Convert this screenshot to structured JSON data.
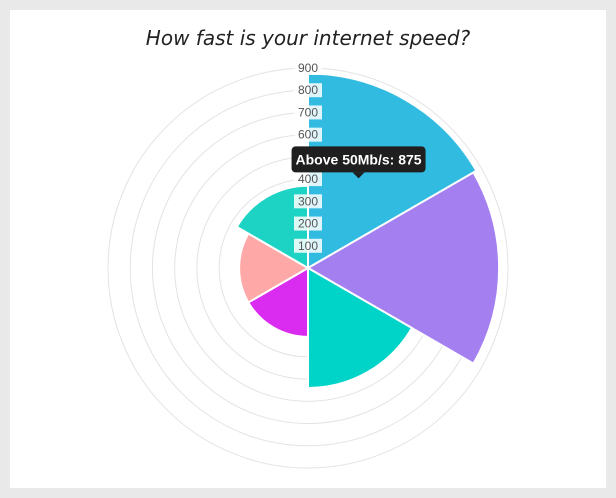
{
  "chart_data": {
    "type": "polarArea",
    "title": "How fast is your internet speed?",
    "r_ticks": [
      100,
      200,
      300,
      400,
      500,
      600,
      700,
      800,
      900
    ],
    "r_max": 900,
    "grid": true,
    "segments": [
      {
        "value": 875,
        "color": "#31bbe0"
      },
      {
        "value": 860,
        "color": "#a47ff0"
      },
      {
        "value": 540,
        "color": "#00d4c8"
      },
      {
        "value": 310,
        "color": "#d92cf0"
      },
      {
        "value": 310,
        "color": "#ffa8a8"
      },
      {
        "value": 370,
        "color": "#1dd3c3"
      }
    ],
    "tooltip": {
      "text": "Above 50Mb/s: 875",
      "segment_index": 0
    }
  }
}
